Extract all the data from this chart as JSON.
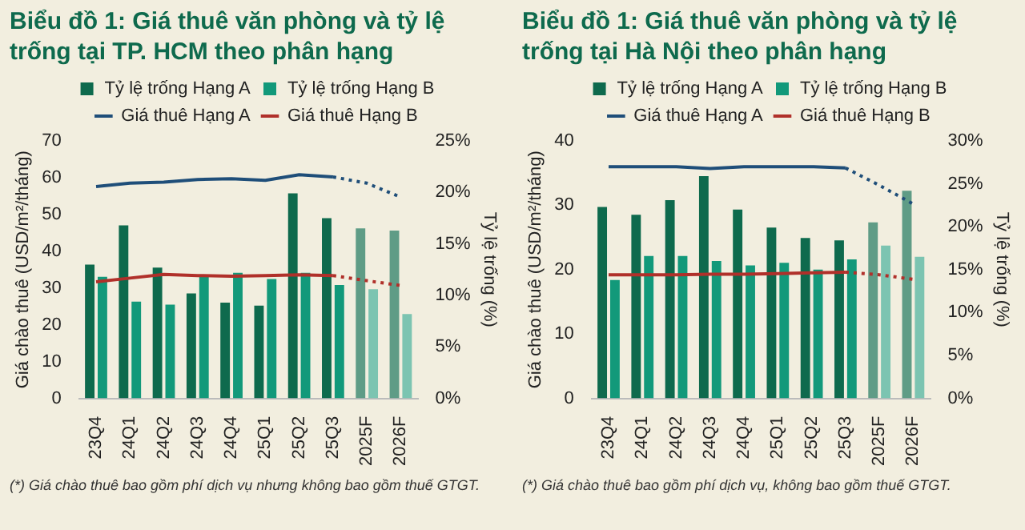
{
  "chart_data": [
    {
      "type": "bar",
      "title": "Biểu đồ 1: Giá thuê văn phòng và tỷ lệ trống tại TP. HCM theo phân hạng",
      "ylabel": "Giá chào thuê (USD/m²/tháng)",
      "y2label": "Tỷ lệ trống (%)",
      "annotations": [
        "(*) Giá chào thuê bao gồm phí dịch vụ nhưng không bao gồm thuế GTGT."
      ],
      "categories": [
        "23Q4",
        "24Q1",
        "24Q2",
        "24Q3",
        "24Q4",
        "25Q1",
        "25Q2",
        "25Q3",
        "2025F",
        "2026F"
      ],
      "series": [
        {
          "name": "Tỷ lệ trống Hạng A",
          "color": "#0e6a4d",
          "colors": [
            "#0e6a4d",
            "#0e6a4d",
            "#0e6a4d",
            "#0e6a4d",
            "#0e6a4d",
            "#0e6a4d",
            "#0e6a4d",
            "#0e6a4d",
            "#5f9c86",
            "#5f9c86"
          ],
          "axis": "y2",
          "values": [
            13.0,
            16.8,
            12.7,
            10.2,
            9.3,
            9.0,
            19.9,
            17.5,
            16.5,
            16.3
          ]
        },
        {
          "name": "Tỷ lệ trống Hạng B",
          "color": "#12997a",
          "colors": [
            "#12997a",
            "#12997a",
            "#12997a",
            "#12997a",
            "#12997a",
            "#12997a",
            "#12997a",
            "#12997a",
            "#7cc4b1",
            "#7cc4b1"
          ],
          "axis": "y2",
          "values": [
            11.8,
            9.4,
            9.1,
            11.8,
            12.2,
            11.6,
            12.2,
            11.0,
            10.6,
            8.2
          ]
        },
        {
          "type": "line",
          "name": "Giá thuê Hạng A",
          "color": "#1f4e79",
          "line_style": "solid",
          "values": [
            57.6,
            58.5,
            58.8,
            59.5,
            59.7,
            59.3,
            60.8,
            60.2,
            null,
            null
          ]
        },
        {
          "type": "line",
          "name": "Giá thuê Hạng B",
          "color": "#b0302a",
          "line_style": "solid",
          "values": [
            31.7,
            32.7,
            33.7,
            33.4,
            33.2,
            33.4,
            33.6,
            33.4,
            null,
            null
          ]
        },
        {
          "type": "line",
          "color": "#1f4e79",
          "line_style": "dotted",
          "values": [
            null,
            null,
            null,
            null,
            null,
            null,
            null,
            60.2,
            58.5,
            54.7
          ]
        },
        {
          "type": "line",
          "color": "#b0302a",
          "line_style": "dotted",
          "values": [
            null,
            null,
            null,
            null,
            null,
            null,
            null,
            33.4,
            32.0,
            30.7
          ]
        }
      ],
      "ylim": [
        0,
        70
      ],
      "yticks": [
        0,
        10,
        20,
        30,
        40,
        50,
        60,
        70
      ],
      "y2lim": [
        0,
        25
      ],
      "y2ticks": [
        {
          "value": 0,
          "label": "0%"
        },
        {
          "value": 5,
          "label": "5%"
        },
        {
          "value": 10,
          "label": "10%"
        },
        {
          "value": 15,
          "label": "15%"
        },
        {
          "value": 20,
          "label": "20%"
        },
        {
          "value": 25,
          "label": "25%"
        }
      ],
      "grid": false,
      "legend": "top",
      "marker": "none"
    },
    {
      "type": "bar",
      "title": "Biểu đồ 1: Giá thuê văn phòng và tỷ lệ trống tại Hà Nội theo phân hạng",
      "ylabel": "Giá chào thuê (USD/m²/tháng)",
      "y2label": "Tỷ lệ trống (%)",
      "annotations": [
        "(*) Giá chào thuê bao gồm phí dịch vụ, không bao gồm thuế GTGT."
      ],
      "categories": [
        "23Q4",
        "24Q1",
        "24Q2",
        "24Q3",
        "24Q4",
        "25Q1",
        "25Q2",
        "25Q3",
        "2025F",
        "2026F"
      ],
      "series": [
        {
          "name": "Tỷ lệ trống Hạng A",
          "color": "#0e6a4d",
          "colors": [
            "#0e6a4d",
            "#0e6a4d",
            "#0e6a4d",
            "#0e6a4d",
            "#0e6a4d",
            "#0e6a4d",
            "#0e6a4d",
            "#0e6a4d",
            "#5f9c86",
            "#5f9c86"
          ],
          "axis": "y2",
          "values": [
            22.3,
            21.4,
            23.1,
            25.9,
            22.0,
            19.9,
            18.7,
            18.4,
            20.5,
            24.2
          ]
        },
        {
          "name": "Tỷ lệ trống Hạng B",
          "color": "#12997a",
          "colors": [
            "#12997a",
            "#12997a",
            "#12997a",
            "#12997a",
            "#12997a",
            "#12997a",
            "#12997a",
            "#12997a",
            "#7cc4b1",
            "#7cc4b1"
          ],
          "axis": "y2",
          "values": [
            13.8,
            16.6,
            16.6,
            16.0,
            15.5,
            15.8,
            15.0,
            16.2,
            17.8,
            16.5
          ]
        },
        {
          "type": "line",
          "name": "Giá thuê Hạng A",
          "color": "#1f4e79",
          "line_style": "solid",
          "values": [
            36.0,
            36.0,
            36.0,
            35.7,
            36.0,
            36.0,
            36.0,
            35.8,
            null,
            null
          ]
        },
        {
          "type": "line",
          "name": "Giá thuê Hạng B",
          "color": "#b0302a",
          "line_style": "solid",
          "values": [
            19.2,
            19.2,
            19.2,
            19.3,
            19.3,
            19.4,
            19.5,
            19.6,
            null,
            null
          ]
        },
        {
          "type": "line",
          "color": "#1f4e79",
          "line_style": "dotted",
          "values": [
            null,
            null,
            null,
            null,
            null,
            null,
            null,
            35.8,
            33.1,
            30.2
          ]
        },
        {
          "type": "line",
          "color": "#b0302a",
          "line_style": "dotted",
          "values": [
            null,
            null,
            null,
            null,
            null,
            null,
            null,
            19.6,
            19.2,
            18.5
          ]
        }
      ],
      "ylim": [
        0,
        40
      ],
      "yticks": [
        0,
        10,
        20,
        30,
        40
      ],
      "y2lim": [
        0,
        30
      ],
      "y2ticks": [
        {
          "value": 0,
          "label": "0%"
        },
        {
          "value": 5,
          "label": "5%"
        },
        {
          "value": 10,
          "label": "10%"
        },
        {
          "value": 15,
          "label": "15%"
        },
        {
          "value": 20,
          "label": "20%"
        },
        {
          "value": 25,
          "label": "25%"
        },
        {
          "value": 30,
          "label": "30%"
        }
      ],
      "grid": false,
      "legend": "top",
      "marker": "none"
    }
  ]
}
